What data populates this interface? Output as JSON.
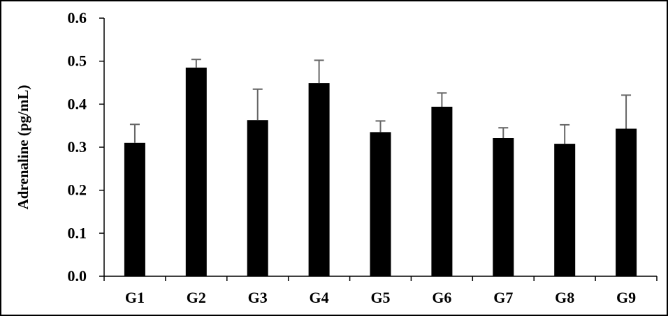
{
  "chart_data": {
    "type": "bar",
    "title": "",
    "xlabel": "",
    "ylabel": "Adrenaline (pg/mL)",
    "ylim": [
      0,
      0.6
    ],
    "yticks": [
      "0.0",
      "0.1",
      "0.2",
      "0.3",
      "0.4",
      "0.5",
      "0.6"
    ],
    "categories": [
      "G1",
      "G2",
      "G3",
      "G4",
      "G5",
      "G6",
      "G7",
      "G8",
      "G9"
    ],
    "values": [
      0.31,
      0.485,
      0.363,
      0.449,
      0.335,
      0.394,
      0.321,
      0.308,
      0.343
    ],
    "error": [
      0.043,
      0.019,
      0.072,
      0.053,
      0.026,
      0.032,
      0.024,
      0.044,
      0.078
    ],
    "bar_color": "#000000",
    "error_bar_color": "#666666",
    "grid": false,
    "legend": "none"
  }
}
